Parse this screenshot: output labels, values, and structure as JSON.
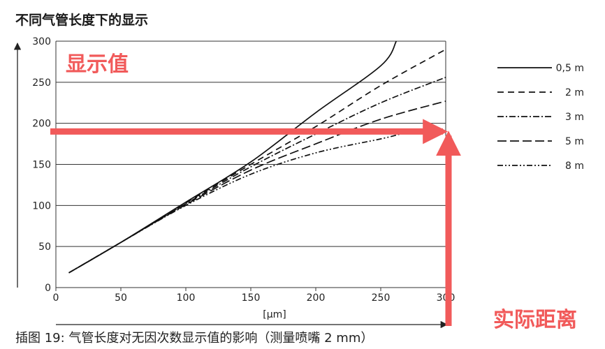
{
  "chart_data": {
    "type": "line",
    "title": "不同气管长度下的显示",
    "xlabel": "[μm]",
    "ylabel": "",
    "xlim": [
      0,
      300
    ],
    "ylim": [
      0,
      300
    ],
    "x_ticks": [
      "0",
      "50",
      "100",
      "150",
      "200",
      "250",
      "300"
    ],
    "y_ticks": [
      "0",
      "50",
      "100",
      "150",
      "200",
      "250",
      "300"
    ],
    "grid": "horizontal",
    "legend_position": "right",
    "series": [
      {
        "name": "0,5 m",
        "dash": "solid",
        "points": [
          [
            10,
            18
          ],
          [
            50,
            55
          ],
          [
            100,
            104
          ],
          [
            150,
            153
          ],
          [
            200,
            213
          ],
          [
            250,
            270
          ],
          [
            262,
            300
          ]
        ]
      },
      {
        "name": "2 m",
        "dash": "dashed",
        "points": [
          [
            10,
            18
          ],
          [
            50,
            55
          ],
          [
            100,
            103
          ],
          [
            150,
            150
          ],
          [
            200,
            196
          ],
          [
            250,
            246
          ],
          [
            300,
            290
          ]
        ]
      },
      {
        "name": "3 m",
        "dash": "dashdot",
        "points": [
          [
            10,
            18
          ],
          [
            50,
            55
          ],
          [
            100,
            102
          ],
          [
            150,
            147
          ],
          [
            200,
            187
          ],
          [
            250,
            225
          ],
          [
            300,
            256
          ]
        ]
      },
      {
        "name": "5 m",
        "dash": "longdash",
        "points": [
          [
            10,
            18
          ],
          [
            50,
            55
          ],
          [
            100,
            101
          ],
          [
            150,
            143
          ],
          [
            200,
            175
          ],
          [
            250,
            205
          ],
          [
            300,
            227
          ]
        ]
      },
      {
        "name": "8 m",
        "dash": "dashdotdot",
        "points": [
          [
            10,
            18
          ],
          [
            50,
            55
          ],
          [
            100,
            100
          ],
          [
            150,
            138
          ],
          [
            200,
            164
          ],
          [
            250,
            181
          ],
          [
            265,
            187
          ]
        ]
      }
    ],
    "annotations": {
      "y_label": "显示值",
      "x_label": "实际距离",
      "marker_value": 190,
      "marker_x": 300,
      "color": "#f15a5a"
    },
    "caption": "插图 19: 气管长度对无因次数显示值的影响（测量喷嘴 2 mm）"
  }
}
